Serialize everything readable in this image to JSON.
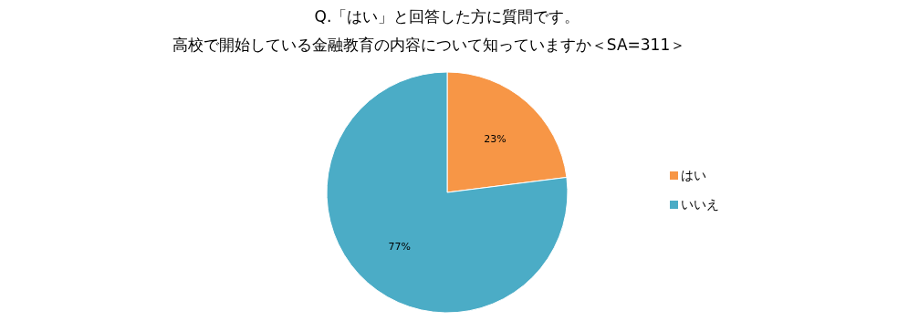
{
  "chart_data": {
    "type": "pie",
    "title": "Q.「はい」と回答した方に質問です。",
    "subtitle": "高校で開始している金融教育の内容について知っていますか＜SA=311＞",
    "categories": [
      "はい",
      "いいえ"
    ],
    "values": [
      23,
      77
    ],
    "colors": [
      "#f79646",
      "#4bacc6"
    ],
    "value_labels": [
      "23%",
      "77%"
    ],
    "legend": "right"
  }
}
